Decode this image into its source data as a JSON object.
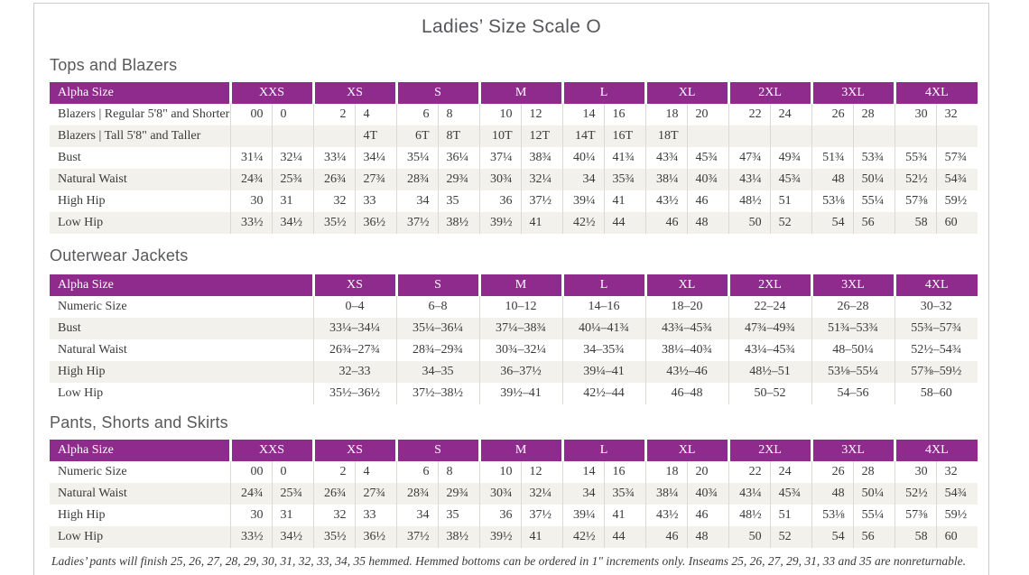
{
  "page": {
    "title": "Ladies’ Size Scale O",
    "footnote": "Ladies’ pants will finish 25, 26, 27, 28, 29, 30, 31, 32, 33, 34, 35 hemmed. Hemmed bottoms can be ordered in 1\" increments only. Inseams 25, 26, 27, 29, 31, 33 and 35 are nonreturnable."
  },
  "colors": {
    "header_bg": "#8e2b8d",
    "header_text": "#ffffff",
    "stripe_bg": "#f2f1ec",
    "grid_line": "#dcdad4",
    "body_text": "#3b3a39",
    "heading_text": "#58595b"
  },
  "tables": [
    {
      "id": "tops-and-blazers",
      "heading": "Tops and Blazers",
      "layout": "paired",
      "header": [
        "Alpha Size",
        "XXS",
        "XS",
        "S",
        "M",
        "L",
        "XL",
        "2XL",
        "3XL",
        "4XL"
      ],
      "rows": [
        {
          "label": "Blazers | Regular 5'8\" and Shorter",
          "values": [
            "00",
            "0",
            "2",
            "4",
            "6",
            "8",
            "10",
            "12",
            "14",
            "16",
            "18",
            "20",
            "22",
            "24",
            "26",
            "28",
            "30",
            "32"
          ]
        },
        {
          "label": "Blazers | Tall 5'8\" and Taller",
          "values": [
            "",
            "",
            "",
            "4T",
            "6T",
            "8T",
            "10T",
            "12T",
            "14T",
            "16T",
            "18T",
            "",
            "",
            "",
            "",
            "",
            "",
            ""
          ]
        },
        {
          "label": "Bust",
          "values": [
            "31¼",
            "32¼",
            "33¼",
            "34¼",
            "35¼",
            "36¼",
            "37¼",
            "38¾",
            "40¼",
            "41¾",
            "43¾",
            "45¾",
            "47¾",
            "49¾",
            "51¾",
            "53¾",
            "55¾",
            "57¾"
          ]
        },
        {
          "label": "Natural Waist",
          "values": [
            "24¾",
            "25¾",
            "26¾",
            "27¾",
            "28¾",
            "29¾",
            "30¾",
            "32¼",
            "34",
            "35¾",
            "38¼",
            "40¾",
            "43¼",
            "45¾",
            "48",
            "50¼",
            "52½",
            "54¾"
          ]
        },
        {
          "label": "High Hip",
          "values": [
            "30",
            "31",
            "32",
            "33",
            "34",
            "35",
            "36",
            "37½",
            "39¼",
            "41",
            "43½",
            "46",
            "48½",
            "51",
            "53⅛",
            "55¼",
            "57⅜",
            "59½"
          ]
        },
        {
          "label": "Low Hip",
          "values": [
            "33½",
            "34½",
            "35½",
            "36½",
            "37½",
            "38½",
            "39½",
            "41",
            "42½",
            "44",
            "46",
            "48",
            "50",
            "52",
            "54",
            "56",
            "58",
            "60"
          ]
        }
      ]
    },
    {
      "id": "outerwear-jackets",
      "heading": "Outerwear Jackets",
      "layout": "range",
      "header": [
        "Alpha Size",
        "XS",
        "S",
        "M",
        "L",
        "XL",
        "2XL",
        "3XL",
        "4XL"
      ],
      "rows": [
        {
          "label": "Numeric Size",
          "values": [
            "0–4",
            "6–8",
            "10–12",
            "14–16",
            "18–20",
            "22–24",
            "26–28",
            "30–32"
          ]
        },
        {
          "label": "Bust",
          "values": [
            "33¼–34¼",
            "35¼–36¼",
            "37¼–38¾",
            "40¼–41¾",
            "43¾–45¾",
            "47¾–49¾",
            "51¾–53¾",
            "55¾–57¾"
          ]
        },
        {
          "label": "Natural Waist",
          "values": [
            "26¾–27¾",
            "28¾–29¾",
            "30¾–32¼",
            "34–35¾",
            "38¼–40¾",
            "43¼–45¾",
            "48–50¼",
            "52½–54¾"
          ]
        },
        {
          "label": "High Hip",
          "values": [
            "32–33",
            "34–35",
            "36–37½",
            "39¼–41",
            "43½–46",
            "48½–51",
            "53⅛–55¼",
            "57⅜–59½"
          ]
        },
        {
          "label": "Low Hip",
          "values": [
            "35½–36½",
            "37½–38½",
            "39½–41",
            "42½–44",
            "46–48",
            "50–52",
            "54–56",
            "58–60"
          ]
        }
      ]
    },
    {
      "id": "pants-shorts-and-skirts",
      "heading": "Pants, Shorts and Skirts",
      "layout": "paired",
      "header": [
        "Alpha Size",
        "XXS",
        "XS",
        "S",
        "M",
        "L",
        "XL",
        "2XL",
        "3XL",
        "4XL"
      ],
      "rows": [
        {
          "label": "Numeric Size",
          "values": [
            "00",
            "0",
            "2",
            "4",
            "6",
            "8",
            "10",
            "12",
            "14",
            "16",
            "18",
            "20",
            "22",
            "24",
            "26",
            "28",
            "30",
            "32"
          ]
        },
        {
          "label": "Natural Waist",
          "values": [
            "24¾",
            "25¾",
            "26¾",
            "27¾",
            "28¾",
            "29¾",
            "30¾",
            "32¼",
            "34",
            "35¾",
            "38¼",
            "40¾",
            "43¼",
            "45¾",
            "48",
            "50¼",
            "52½",
            "54¾"
          ]
        },
        {
          "label": "High Hip",
          "values": [
            "30",
            "31",
            "32",
            "33",
            "34",
            "35",
            "36",
            "37½",
            "39¼",
            "41",
            "43½",
            "46",
            "48½",
            "51",
            "53⅛",
            "55¼",
            "57⅜",
            "59½"
          ]
        },
        {
          "label": "Low Hip",
          "values": [
            "33½",
            "34½",
            "35½",
            "36½",
            "37½",
            "38½",
            "39½",
            "41",
            "42½",
            "44",
            "46",
            "48",
            "50",
            "52",
            "54",
            "56",
            "58",
            "60"
          ]
        }
      ]
    }
  ]
}
